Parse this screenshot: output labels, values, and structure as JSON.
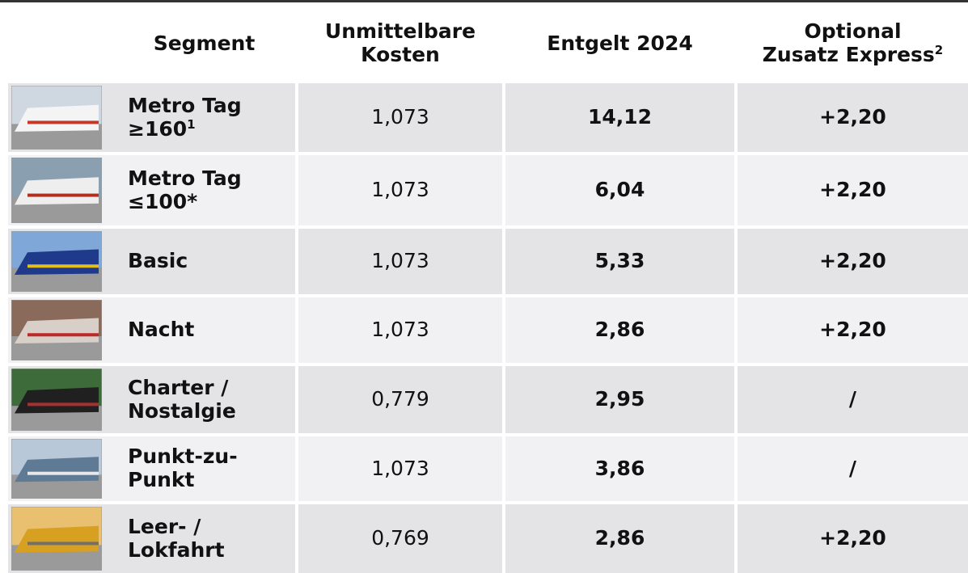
{
  "table": {
    "header": [
      {
        "lines": [
          "Segment"
        ]
      },
      {
        "lines": [
          "Unmittelbare",
          "Kosten"
        ]
      },
      {
        "lines": [
          "Entgelt 2024"
        ]
      },
      {
        "lines": [
          "Optional",
          "Zusatz Express"
        ],
        "sup": "2"
      }
    ],
    "rows": [
      {
        "segment": [
          "Metro Tag",
          "≥160"
        ],
        "sup": "1",
        "kosten": "1,073",
        "entgelt": "14,12",
        "express": "+2,20"
      },
      {
        "segment": [
          "Metro Tag",
          "≤100*"
        ],
        "kosten": "1,073",
        "entgelt": "6,04",
        "express": "+2,20"
      },
      {
        "segment": [
          "Basic"
        ],
        "kosten": "1,073",
        "entgelt": "5,33",
        "express": "+2,20"
      },
      {
        "segment": [
          "Nacht"
        ],
        "kosten": "1,073",
        "entgelt": "2,86",
        "express": "+2,20"
      },
      {
        "segment": [
          "Charter /",
          "Nostalgie"
        ],
        "kosten": "0,779",
        "entgelt": "2,95",
        "express": "/"
      },
      {
        "segment": [
          "Punkt-zu-",
          "Punkt"
        ],
        "kosten": "1,073",
        "entgelt": "3,86",
        "express": "/"
      },
      {
        "segment": [
          "Leer- /",
          "Lokfahrt"
        ],
        "kosten": "0,769",
        "entgelt": "2,86",
        "express": "+2,20"
      }
    ]
  }
}
